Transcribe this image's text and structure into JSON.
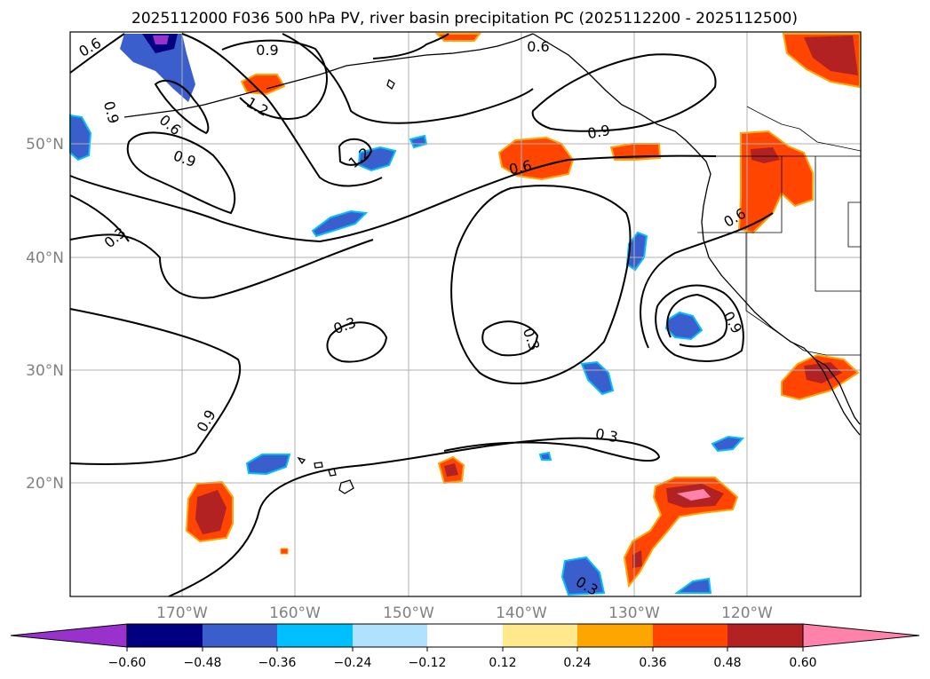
{
  "title": "2025112000 F036 500 hPa PV, river basin precipitation PC (2025112200 - 2025112500)",
  "lat_labels": [
    "50°N",
    "40°N",
    "30°N",
    "20°N"
  ],
  "lon_labels": [
    "170°W",
    "160°W",
    "150°W",
    "140°W",
    "130°W",
    "120°W"
  ],
  "colorbar": {
    "colors": [
      "#9932cc",
      "#000080",
      "#3a5fcd",
      "#00bfff",
      "#b0e2ff",
      "#ffffff",
      "#ffe98c",
      "#ffa500",
      "#ff4500",
      "#b22222",
      "#ff82ab"
    ],
    "ticks": [
      "−0.60",
      "−0.48",
      "−0.36",
      "−0.24",
      "−0.12",
      "0.12",
      "0.24",
      "0.36",
      "0.48",
      "0.60"
    ]
  },
  "contour_labels": [
    "0.6",
    "0.9",
    "0.9",
    "0.6",
    "0.9",
    "0.6",
    "0.9",
    "1.2",
    "1.2",
    "0.3",
    "0.3",
    "0.3",
    "0.6",
    "0.9",
    "0.6",
    "0.3",
    "0.9",
    "0.3",
    "0.3",
    "0.3"
  ]
}
